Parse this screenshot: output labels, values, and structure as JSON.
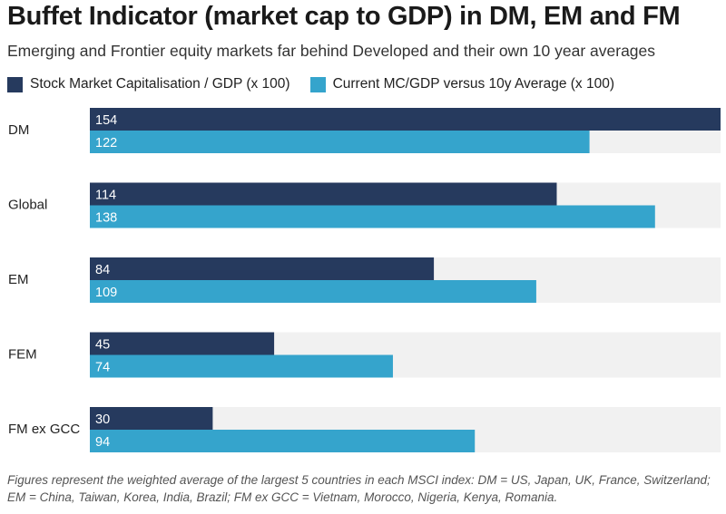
{
  "chart_data": {
    "type": "bar",
    "orientation": "horizontal",
    "title": "Buffet Indicator (market cap to GDP) in DM, EM and FM",
    "subtitle": "Emerging and Frontier equity markets far behind Developed and their own 10 year averages",
    "categories": [
      "DM",
      "Global",
      "EM",
      "FEM",
      "FM ex GCC"
    ],
    "series": [
      {
        "name": "Stock Market Capitalisation / GDP (x 100)",
        "color": "#263a5e",
        "values": [
          154,
          114,
          84,
          45,
          30
        ]
      },
      {
        "name": "Current MC/GDP versus 10y Average (x 100)",
        "color": "#35a4cc",
        "values": [
          122,
          138,
          109,
          74,
          94
        ]
      }
    ],
    "xlim": [
      0,
      154
    ],
    "background_track_color": "#f1f1f1",
    "legend_position": "top-left",
    "grid": false,
    "footnote": "Figures represent the weighted average of the largest 5 countries in each MSCI index: DM = US, Japan, UK, France, Switzerland; EM = China, Taiwan, Korea, India, Brazil; FM ex GCC = Vietnam, Morocco, Nigeria, Kenya, Romania."
  }
}
